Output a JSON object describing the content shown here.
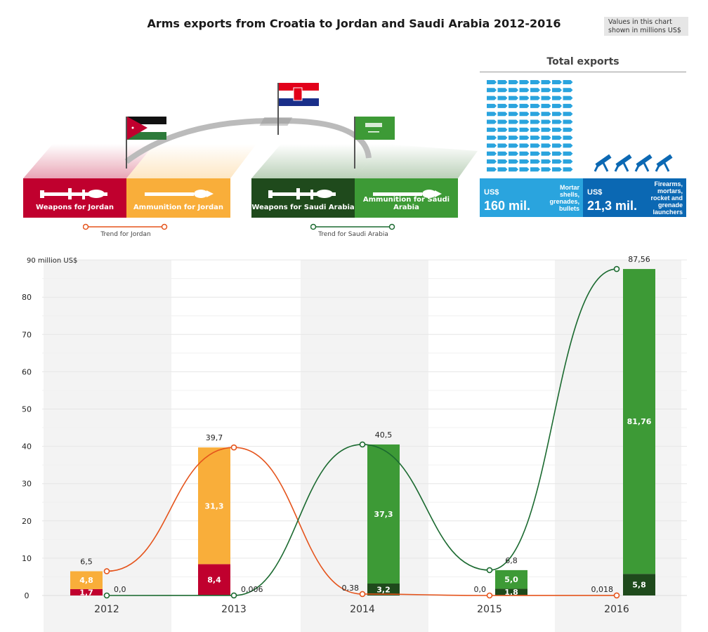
{
  "title": "Arms exports from Croatia to Jordan and Saudi Arabia 2012-2016",
  "note": "Values in this chart shown in millions US$",
  "legend": {
    "weapons_jordan": "Weapons for Jordan",
    "ammo_jordan": "Ammunition for Jordan",
    "weapons_saudi": "Weapons for Saudi Arabia",
    "ammo_saudi": "Ammunition for Saudi Arabia",
    "trend_jordan": "Trend for Jordan",
    "trend_saudi": "Trend for Saudi Arabia"
  },
  "totals": {
    "title": "Total exports",
    "ammo": {
      "currency": "US$",
      "value": "160 mil.",
      "desc": "Mortar shells, grenades, bullets"
    },
    "weapons": {
      "currency": "US$",
      "value": "21,3 mil.",
      "desc": "Firearms, mortars, rocket and grenade launchers"
    }
  },
  "colors": {
    "weapons_jordan": "#c0002e",
    "ammo_jordan": "#f9ae3a",
    "weapons_saudi": "#1f4a1c",
    "ammo_saudi": "#3d9a36",
    "trend_jordan": "#e5541c",
    "trend_saudi": "#1b6a30",
    "ammo_total": "#2aa4de",
    "weapons_total": "#0b68b3"
  },
  "chart_data": {
    "type": "bar",
    "ylabel": "90 million US$",
    "ylim": [
      0,
      90
    ],
    "yticks": [
      "0",
      "10",
      "20",
      "30",
      "40",
      "50",
      "60",
      "70",
      "80"
    ],
    "grid": true,
    "categories": [
      "2012",
      "2013",
      "2014",
      "2015",
      "2016"
    ],
    "series": [
      {
        "name": "Weapons for Jordan",
        "values": [
          1.7,
          8.4,
          null,
          null,
          null
        ],
        "labels": [
          "1,7",
          "8,4",
          "",
          "",
          ""
        ]
      },
      {
        "name": "Ammunition for Jordan",
        "values": [
          4.8,
          31.3,
          null,
          null,
          null
        ],
        "labels": [
          "4,8",
          "31,3",
          "",
          "",
          ""
        ]
      },
      {
        "name": "Weapons for Saudi Arabia",
        "values": [
          null,
          null,
          3.2,
          1.8,
          5.8
        ],
        "labels": [
          "",
          "",
          "3,2",
          "1,8",
          "5,8"
        ]
      },
      {
        "name": "Ammunition for Saudi Arabia",
        "values": [
          null,
          null,
          37.3,
          5.0,
          81.76
        ],
        "labels": [
          "",
          "",
          "37,3",
          "5,0",
          "81,76"
        ]
      }
    ],
    "trends": [
      {
        "name": "Trend for Jordan",
        "values": [
          6.5,
          39.7,
          0.38,
          0.0,
          0.018
        ],
        "labels": [
          "6,5",
          "39,7",
          "0,38",
          "0,0",
          "0,018"
        ]
      },
      {
        "name": "Trend for Saudi Arabia",
        "values": [
          0.0,
          0.006,
          40.5,
          6.8,
          87.56
        ],
        "labels": [
          "0,0",
          "0,006",
          "40,5",
          "6,8",
          "87,56"
        ]
      }
    ]
  }
}
